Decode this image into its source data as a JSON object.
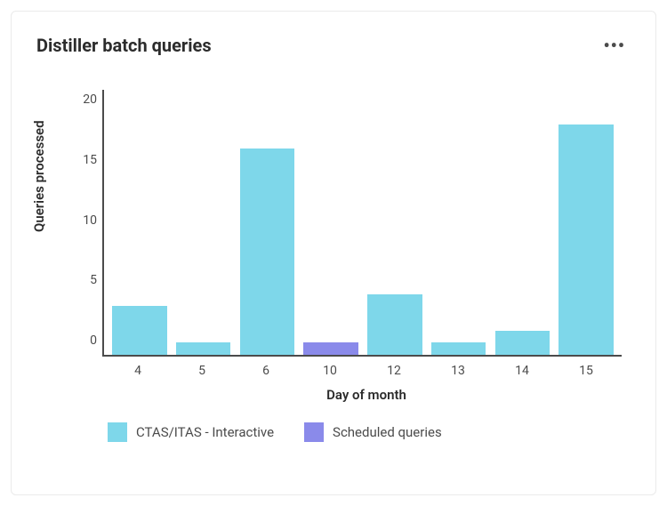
{
  "card": {
    "title": "Distiller batch queries",
    "more_glyph": "•••"
  },
  "chart": {
    "type": "stacked-bar",
    "y_axis_label": "Queries processed",
    "x_axis_label": "Day of month",
    "y_max": 22,
    "y_ticks": [
      0,
      5,
      10,
      15,
      20
    ],
    "background_color": "#ffffff",
    "axis_color": "#4b4b4b",
    "categories": [
      "4",
      "5",
      "6",
      "10",
      "12",
      "13",
      "14",
      "15"
    ],
    "series": [
      {
        "name": "CTAS/ITAS - Interactive",
        "color": "#7ed7ea",
        "values": [
          4,
          1,
          17,
          0,
          5,
          1,
          2,
          19
        ]
      },
      {
        "name": "Scheduled queries",
        "color": "#8a8aea",
        "values": [
          0,
          0,
          0,
          1,
          0,
          0,
          0,
          0
        ]
      }
    ],
    "title_fontsize": 20,
    "label_fontsize": 15,
    "tick_fontsize": 14,
    "bar_width_pct": 86
  },
  "legend": {
    "items": [
      {
        "label": "CTAS/ITAS - Interactive",
        "color": "#7ed7ea"
      },
      {
        "label": "Scheduled queries",
        "color": "#8a8aea"
      }
    ]
  }
}
